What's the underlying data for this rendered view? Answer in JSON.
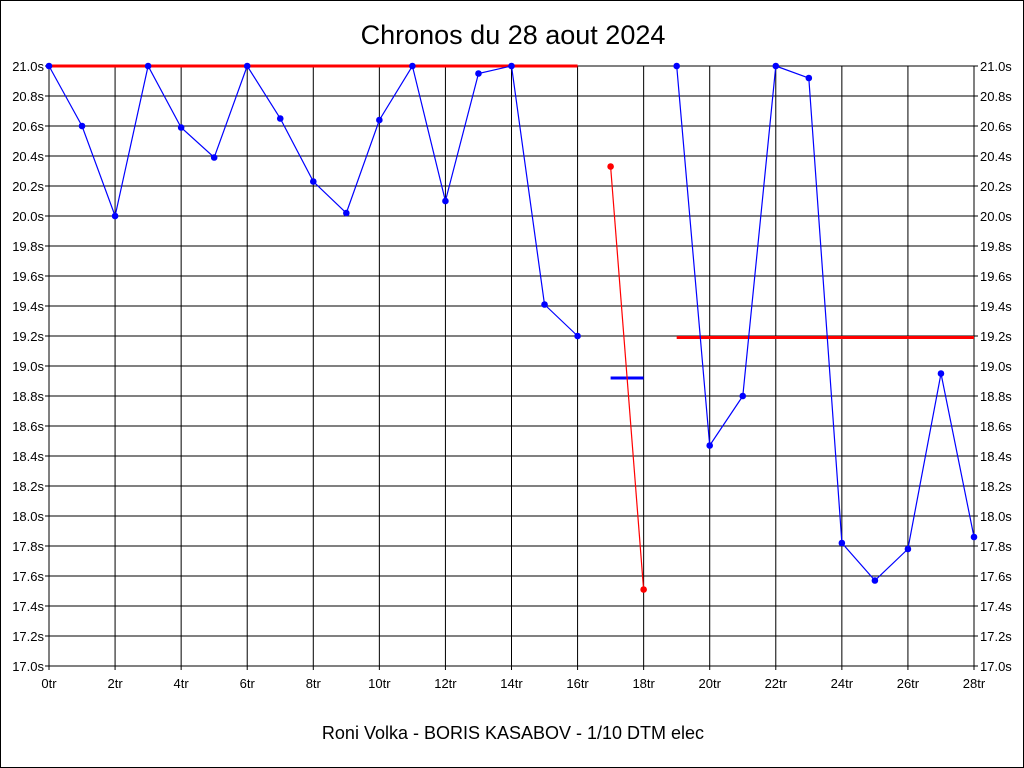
{
  "chart_data": {
    "type": "line",
    "title": "Chronos du 28 aout 2024",
    "footer": "Roni Volka - BORIS KASABOV - 1/10 DTM elec",
    "xlabel": "",
    "ylabel": "",
    "xlim": [
      0,
      28
    ],
    "ylim": [
      17.0,
      21.0
    ],
    "x_ticks": [
      "0tr",
      "2tr",
      "4tr",
      "6tr",
      "8tr",
      "10tr",
      "12tr",
      "14tr",
      "16tr",
      "18tr",
      "20tr",
      "22tr",
      "24tr",
      "26tr",
      "28tr"
    ],
    "y_ticks": [
      "21.0s",
      "20.8s",
      "20.6s",
      "20.4s",
      "20.2s",
      "20.0s",
      "19.8s",
      "19.6s",
      "19.4s",
      "19.2s",
      "19.0s",
      "18.8s",
      "18.6s",
      "18.4s",
      "18.2s",
      "18.0s",
      "17.8s",
      "17.6s",
      "17.4s",
      "17.2s",
      "17.0s"
    ],
    "y_tick_values": [
      21.0,
      20.8,
      20.6,
      20.4,
      20.2,
      20.0,
      19.8,
      19.6,
      19.4,
      19.2,
      19.0,
      18.8,
      18.6,
      18.4,
      18.2,
      18.0,
      17.8,
      17.6,
      17.4,
      17.2,
      17.0
    ],
    "grid": true,
    "series": [
      {
        "color": "#0000ff",
        "points": [
          [
            0,
            21.0
          ],
          [
            1,
            20.6
          ],
          [
            2,
            20.0
          ],
          [
            3,
            21.0
          ],
          [
            4,
            20.59
          ],
          [
            5,
            20.39
          ],
          [
            6,
            21.0
          ],
          [
            7,
            20.65
          ],
          [
            8,
            20.23
          ],
          [
            9,
            20.02
          ],
          [
            10,
            20.64
          ],
          [
            11,
            21.0
          ],
          [
            12,
            20.1
          ],
          [
            13,
            20.95
          ],
          [
            14,
            21.0
          ],
          [
            15,
            19.41
          ],
          [
            16,
            19.2
          ]
        ]
      },
      {
        "color": "#ff0000",
        "points": [
          [
            17,
            20.33
          ],
          [
            18,
            17.51
          ]
        ]
      },
      {
        "color": "#0000ff",
        "points": [
          [
            19,
            21.0
          ],
          [
            20,
            18.47
          ],
          [
            21,
            18.8
          ],
          [
            22,
            21.0
          ],
          [
            23,
            20.92
          ],
          [
            24,
            17.82
          ],
          [
            25,
            17.57
          ],
          [
            26,
            17.78
          ],
          [
            27,
            18.95
          ],
          [
            28,
            17.86
          ]
        ]
      }
    ],
    "reference_lines": [
      {
        "color": "#ff0000",
        "y": 21.0,
        "x_range": [
          0,
          16
        ]
      },
      {
        "color": "#0000ff",
        "y": 18.92,
        "x_range": [
          17,
          18
        ]
      },
      {
        "color": "#ff0000",
        "y": 19.19,
        "x_range": [
          19,
          28
        ]
      }
    ]
  }
}
